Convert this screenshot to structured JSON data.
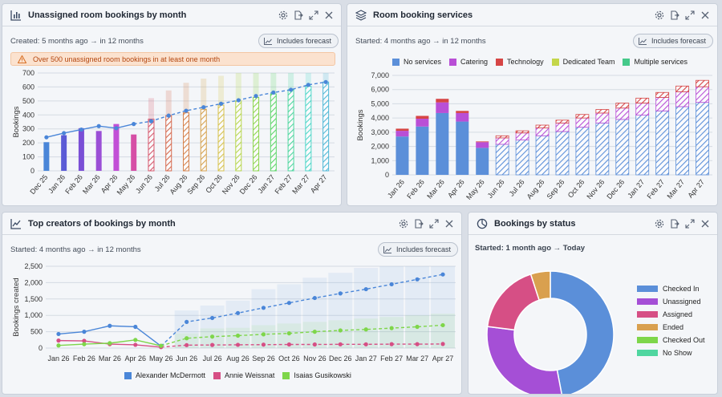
{
  "panels": {
    "unassigned": {
      "title": "Unassigned room bookings by month",
      "subtitle": "Created: 5 months ago → in 12 months",
      "forecast_label": "Includes forecast",
      "warning": "Over 500 unassigned room bookings in at least one month"
    },
    "services": {
      "title": "Room booking services",
      "subtitle": "Started: 4 months ago → in 12 months",
      "forecast_label": "Includes forecast"
    },
    "creators": {
      "title": "Top creators of bookings by month",
      "subtitle": "Started: 4 months ago → in 12 months",
      "forecast_label": "Includes forecast"
    },
    "status": {
      "title": "Bookings by status",
      "subtitle": "Started: 1 month ago → Today"
    }
  },
  "header_icons": [
    "gear-icon",
    "export-icon",
    "expand-icon",
    "close-icon"
  ],
  "colors": {
    "accent": "#4a86d8",
    "warning_bg": "#fbe2cf",
    "warning_text": "#b4460f"
  },
  "chart_data": [
    {
      "id": "unassigned",
      "type": "bar",
      "title": "",
      "ylabel": "Bookings",
      "ylim": [
        0,
        700
      ],
      "yticks": [
        0,
        100,
        200,
        300,
        400,
        500,
        600,
        700
      ],
      "categories": [
        "Dec 25",
        "Jan 26",
        "Feb 26",
        "Mar 26",
        "Apr 26",
        "May 26",
        "Jun 26",
        "Jul 26",
        "Aug 26",
        "Sep 26",
        "Oct 26",
        "Nov 26",
        "Dec 26",
        "Jan 27",
        "Feb 27",
        "Mar 27",
        "Apr 27"
      ],
      "values": [
        205,
        255,
        305,
        285,
        335,
        260,
        370,
        395,
        415,
        440,
        470,
        500,
        525,
        550,
        580,
        605,
        635
      ],
      "upper": [
        null,
        null,
        null,
        null,
        null,
        null,
        520,
        575,
        630,
        660,
        680,
        700,
        700,
        700,
        700,
        700,
        700
      ],
      "trend": [
        240,
        270,
        295,
        320,
        305,
        335,
        355,
        395,
        430,
        455,
        480,
        505,
        535,
        560,
        580,
        615,
        635
      ],
      "forecast_from_index": 6,
      "bar_colors": [
        "#4a86d8",
        "#5b5bd6",
        "#7a4fd6",
        "#9b4fd6",
        "#c24fd6",
        "#d64fa6",
        "#d65a6e",
        "#d66a4f",
        "#d6844f",
        "#d6a24f",
        "#d6c24f",
        "#b8d64f",
        "#8ed64f",
        "#5ed66a",
        "#4fd6a0",
        "#4fd6c8",
        "#4fb8d6"
      ]
    },
    {
      "id": "services",
      "type": "bar",
      "title": "",
      "ylabel": "Bookings",
      "ylim": [
        0,
        7000
      ],
      "yticks": [
        0,
        1000,
        2000,
        3000,
        4000,
        5000,
        6000,
        7000
      ],
      "categories": [
        "Jan 26",
        "Feb 26",
        "Mar 26",
        "Apr 26",
        "May 26",
        "Jun 26",
        "Jul 26",
        "Aug 26",
        "Sep 26",
        "Oct 26",
        "Nov 26",
        "Dec 26",
        "Jan 27",
        "Feb 27",
        "Mar 27",
        "Apr 27"
      ],
      "forecast_from_index": 5,
      "series": [
        {
          "name": "No services",
          "color": "#5b8fd9",
          "values": [
            2700,
            3400,
            4350,
            3750,
            1900,
            2150,
            2450,
            2750,
            3050,
            3350,
            3650,
            3900,
            4200,
            4500,
            4800,
            5100
          ]
        },
        {
          "name": "Catering",
          "color": "#b94fd6",
          "values": [
            400,
            550,
            750,
            600,
            400,
            450,
            500,
            550,
            600,
            650,
            700,
            800,
            850,
            950,
            1050,
            1100
          ]
        },
        {
          "name": "Technology",
          "color": "#d64545",
          "values": [
            150,
            200,
            250,
            150,
            50,
            150,
            150,
            200,
            200,
            250,
            250,
            350,
            350,
            350,
            400,
            450
          ]
        },
        {
          "name": "Dedicated Team",
          "color": "#c4d64a",
          "values": [
            0,
            0,
            0,
            0,
            0,
            0,
            0,
            0,
            0,
            0,
            0,
            0,
            0,
            0,
            0,
            0
          ]
        },
        {
          "name": "Multiple services",
          "color": "#45c98a",
          "values": [
            0,
            0,
            0,
            0,
            0,
            0,
            0,
            0,
            0,
            0,
            0,
            0,
            0,
            0,
            0,
            0
          ]
        }
      ],
      "legend": "top"
    },
    {
      "id": "creators",
      "type": "line",
      "title": "",
      "ylabel": "Bookings created",
      "ylim": [
        0,
        2500
      ],
      "yticks": [
        0,
        500,
        1000,
        1500,
        2000,
        2500
      ],
      "categories": [
        "Jan 26",
        "Feb 26",
        "Mar 26",
        "Apr 26",
        "May 26",
        "Jun 26",
        "Jul 26",
        "Aug 26",
        "Sep 26",
        "Oct 26",
        "Nov 26",
        "Dec 26",
        "Jan 27",
        "Feb 27",
        "Mar 27",
        "Apr 27"
      ],
      "forecast_from_index": 4,
      "series": [
        {
          "name": "Alexander McDermott",
          "color": "#4a86d8",
          "values": [
            430,
            500,
            680,
            650,
            60,
            800,
            920,
            1070,
            1230,
            1380,
            1530,
            1670,
            1800,
            1950,
            2100,
            2250
          ],
          "upper": [
            null,
            null,
            null,
            null,
            null,
            1150,
            1300,
            1450,
            1800,
            1950,
            2150,
            2300,
            2450,
            2500,
            2500,
            2500
          ]
        },
        {
          "name": "Annie Weissnat",
          "color": "#d64f85",
          "values": [
            230,
            220,
            120,
            100,
            30,
            90,
            95,
            100,
            105,
            110,
            110,
            115,
            115,
            120,
            120,
            125
          ]
        },
        {
          "name": "Isaias Gusikowski",
          "color": "#7ed64a",
          "values": [
            80,
            120,
            150,
            250,
            70,
            300,
            350,
            380,
            420,
            450,
            500,
            540,
            570,
            610,
            650,
            700
          ],
          "upper": [
            null,
            null,
            null,
            null,
            null,
            450,
            600,
            620,
            700,
            750,
            800,
            850,
            900,
            950,
            1000,
            1050
          ]
        }
      ],
      "legend": "bottom"
    },
    {
      "id": "status",
      "type": "pie",
      "title": "",
      "donut": true,
      "slices": [
        {
          "name": "Checked In",
          "value": 47,
          "color": "#5b8fd9"
        },
        {
          "name": "Unassigned",
          "value": 30,
          "color": "#a54fd6"
        },
        {
          "name": "Assigned",
          "value": 18,
          "color": "#d64f85"
        },
        {
          "name": "Ended",
          "value": 5,
          "color": "#d9a04f"
        },
        {
          "name": "Checked Out",
          "value": 0,
          "color": "#7ed64a"
        },
        {
          "name": "No Show",
          "value": 0,
          "color": "#4fd6a0"
        }
      ],
      "legend": "right"
    }
  ]
}
